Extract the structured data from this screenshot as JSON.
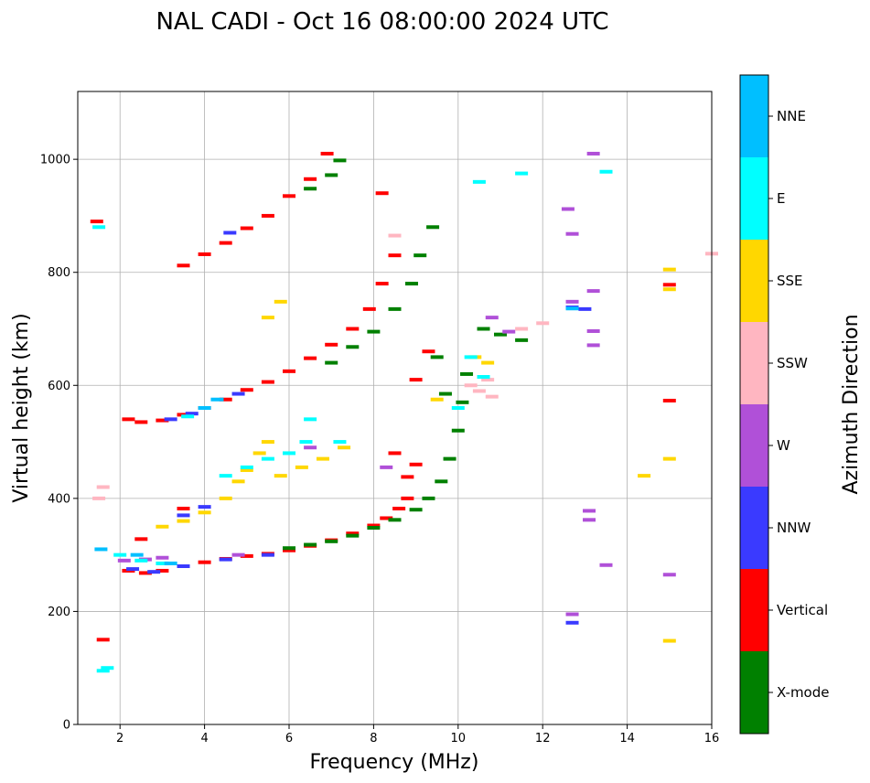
{
  "chart_data": {
    "type": "scatter",
    "title": "NAL CADI - Oct 16 08:00:00 2024 UTC",
    "xlabel": "Frequency (MHz)",
    "ylabel": "Virtual height (km)",
    "xlim": [
      1,
      16
    ],
    "ylim": [
      0,
      1120
    ],
    "xticks": [
      "2",
      "4",
      "6",
      "8",
      "10",
      "12",
      "14",
      "16"
    ],
    "yticks": [
      "0",
      "200",
      "400",
      "600",
      "800",
      "1000"
    ],
    "grid": true,
    "colorbar": {
      "label": "Azimuth Direction",
      "categories": [
        "X-mode",
        "Vertical",
        "NNW",
        "W",
        "SSW",
        "SSE",
        "E",
        "NNE"
      ],
      "colors": [
        "#008000",
        "#ff0000",
        "#3a3aff",
        "#b050d8",
        "#ffb6c1",
        "#ffd700",
        "#00ffff",
        "#00bfff"
      ]
    },
    "series": [
      {
        "name": "Vertical",
        "points": [
          [
            2.2,
            272
          ],
          [
            2.6,
            268
          ],
          [
            3.0,
            272
          ],
          [
            3.5,
            280
          ],
          [
            4.0,
            287
          ],
          [
            4.5,
            293
          ],
          [
            5.0,
            298
          ],
          [
            5.5,
            302
          ],
          [
            6.0,
            308
          ],
          [
            6.5,
            316
          ],
          [
            7.0,
            326
          ],
          [
            7.5,
            338
          ],
          [
            8.0,
            352
          ],
          [
            8.3,
            365
          ],
          [
            8.6,
            382
          ],
          [
            8.8,
            400
          ],
          [
            2.2,
            540
          ],
          [
            2.5,
            535
          ],
          [
            3.0,
            538
          ],
          [
            3.5,
            548
          ],
          [
            4.0,
            560
          ],
          [
            4.5,
            575
          ],
          [
            5.0,
            592
          ],
          [
            5.5,
            606
          ],
          [
            6.0,
            625
          ],
          [
            6.5,
            648
          ],
          [
            7.0,
            672
          ],
          [
            7.5,
            700
          ],
          [
            7.9,
            735
          ],
          [
            8.2,
            780
          ],
          [
            8.5,
            830
          ],
          [
            3.5,
            812
          ],
          [
            4.0,
            832
          ],
          [
            4.5,
            852
          ],
          [
            5.0,
            878
          ],
          [
            5.5,
            900
          ],
          [
            6.0,
            935
          ],
          [
            6.5,
            965
          ],
          [
            6.9,
            1010
          ],
          [
            9.0,
            460
          ],
          [
            8.5,
            480
          ],
          [
            8.8,
            438
          ],
          [
            9.0,
            610
          ],
          [
            9.3,
            660
          ],
          [
            8.2,
            940
          ],
          [
            2.5,
            328
          ],
          [
            3.5,
            382
          ],
          [
            1.6,
            150
          ],
          [
            1.45,
            890
          ],
          [
            15.0,
            778
          ],
          [
            15.0,
            573
          ]
        ]
      },
      {
        "name": "X-mode",
        "points": [
          [
            6.0,
            312
          ],
          [
            6.5,
            318
          ],
          [
            7.0,
            324
          ],
          [
            7.5,
            334
          ],
          [
            8.0,
            348
          ],
          [
            8.5,
            362
          ],
          [
            9.0,
            380
          ],
          [
            9.3,
            400
          ],
          [
            9.6,
            430
          ],
          [
            9.8,
            470
          ],
          [
            10.0,
            520
          ],
          [
            10.1,
            570
          ],
          [
            10.2,
            620
          ],
          [
            7.0,
            640
          ],
          [
            7.5,
            668
          ],
          [
            8.0,
            695
          ],
          [
            8.5,
            735
          ],
          [
            8.9,
            780
          ],
          [
            9.1,
            830
          ],
          [
            9.4,
            880
          ],
          [
            6.5,
            948
          ],
          [
            7.0,
            972
          ],
          [
            7.2,
            998
          ],
          [
            10.6,
            700
          ],
          [
            11.0,
            690
          ],
          [
            11.5,
            680
          ],
          [
            9.7,
            585
          ],
          [
            9.5,
            650
          ]
        ]
      },
      {
        "name": "NNW",
        "points": [
          [
            2.3,
            275
          ],
          [
            2.8,
            270
          ],
          [
            3.5,
            280
          ],
          [
            4.5,
            292
          ],
          [
            5.5,
            300
          ],
          [
            3.2,
            540
          ],
          [
            3.7,
            550
          ],
          [
            4.8,
            585
          ],
          [
            4.6,
            870
          ],
          [
            3.5,
            370
          ],
          [
            4.0,
            385
          ],
          [
            12.7,
            180
          ],
          [
            13.0,
            735
          ],
          [
            12.7,
            738
          ]
        ]
      },
      {
        "name": "W",
        "points": [
          [
            2.1,
            290
          ],
          [
            2.6,
            292
          ],
          [
            3.0,
            295
          ],
          [
            4.8,
            300
          ],
          [
            6.5,
            490
          ],
          [
            8.3,
            455
          ],
          [
            12.7,
            195
          ],
          [
            12.6,
            912
          ],
          [
            12.7,
            868
          ],
          [
            13.2,
            1010
          ],
          [
            15.0,
            265
          ],
          [
            13.1,
            378
          ],
          [
            13.1,
            362
          ],
          [
            12.7,
            748
          ],
          [
            13.2,
            767
          ],
          [
            13.2,
            696
          ],
          [
            13.2,
            671
          ],
          [
            13.5,
            282
          ],
          [
            10.8,
            720
          ],
          [
            11.2,
            695
          ]
        ]
      },
      {
        "name": "SSW",
        "points": [
          [
            1.5,
            400
          ],
          [
            1.6,
            420
          ],
          [
            10.3,
            600
          ],
          [
            10.5,
            590
          ],
          [
            10.7,
            610
          ],
          [
            8.5,
            865
          ],
          [
            11.5,
            700
          ],
          [
            12.0,
            710
          ],
          [
            10.8,
            580
          ],
          [
            16.0,
            833
          ]
        ]
      },
      {
        "name": "SSE",
        "points": [
          [
            3.0,
            350
          ],
          [
            3.5,
            360
          ],
          [
            4.0,
            375
          ],
          [
            4.5,
            400
          ],
          [
            4.8,
            430
          ],
          [
            5.0,
            450
          ],
          [
            5.3,
            480
          ],
          [
            5.5,
            500
          ],
          [
            5.8,
            440
          ],
          [
            6.3,
            455
          ],
          [
            6.8,
            470
          ],
          [
            7.3,
            490
          ],
          [
            5.8,
            748
          ],
          [
            5.5,
            720
          ],
          [
            10.4,
            650
          ],
          [
            10.7,
            640
          ],
          [
            15.0,
            805
          ],
          [
            15.0,
            770
          ],
          [
            15.0,
            470
          ],
          [
            15.0,
            148
          ],
          [
            14.4,
            440
          ],
          [
            9.5,
            575
          ]
        ]
      },
      {
        "name": "E",
        "points": [
          [
            2.0,
            300
          ],
          [
            2.5,
            290
          ],
          [
            3.0,
            285
          ],
          [
            3.6,
            545
          ],
          [
            4.5,
            440
          ],
          [
            5.0,
            455
          ],
          [
            5.5,
            470
          ],
          [
            6.0,
            480
          ],
          [
            6.4,
            500
          ],
          [
            6.5,
            540
          ],
          [
            7.2,
            500
          ],
          [
            10.0,
            560
          ],
          [
            10.3,
            650
          ],
          [
            10.6,
            615
          ],
          [
            10.5,
            960
          ],
          [
            11.5,
            975
          ],
          [
            13.5,
            978
          ],
          [
            1.6,
            95
          ],
          [
            1.7,
            100
          ],
          [
            1.5,
            880
          ]
        ]
      },
      {
        "name": "NNE",
        "points": [
          [
            2.4,
            300
          ],
          [
            3.2,
            285
          ],
          [
            4.0,
            560
          ],
          [
            4.3,
            575
          ],
          [
            12.7,
            736
          ],
          [
            1.55,
            310
          ]
        ]
      }
    ]
  }
}
